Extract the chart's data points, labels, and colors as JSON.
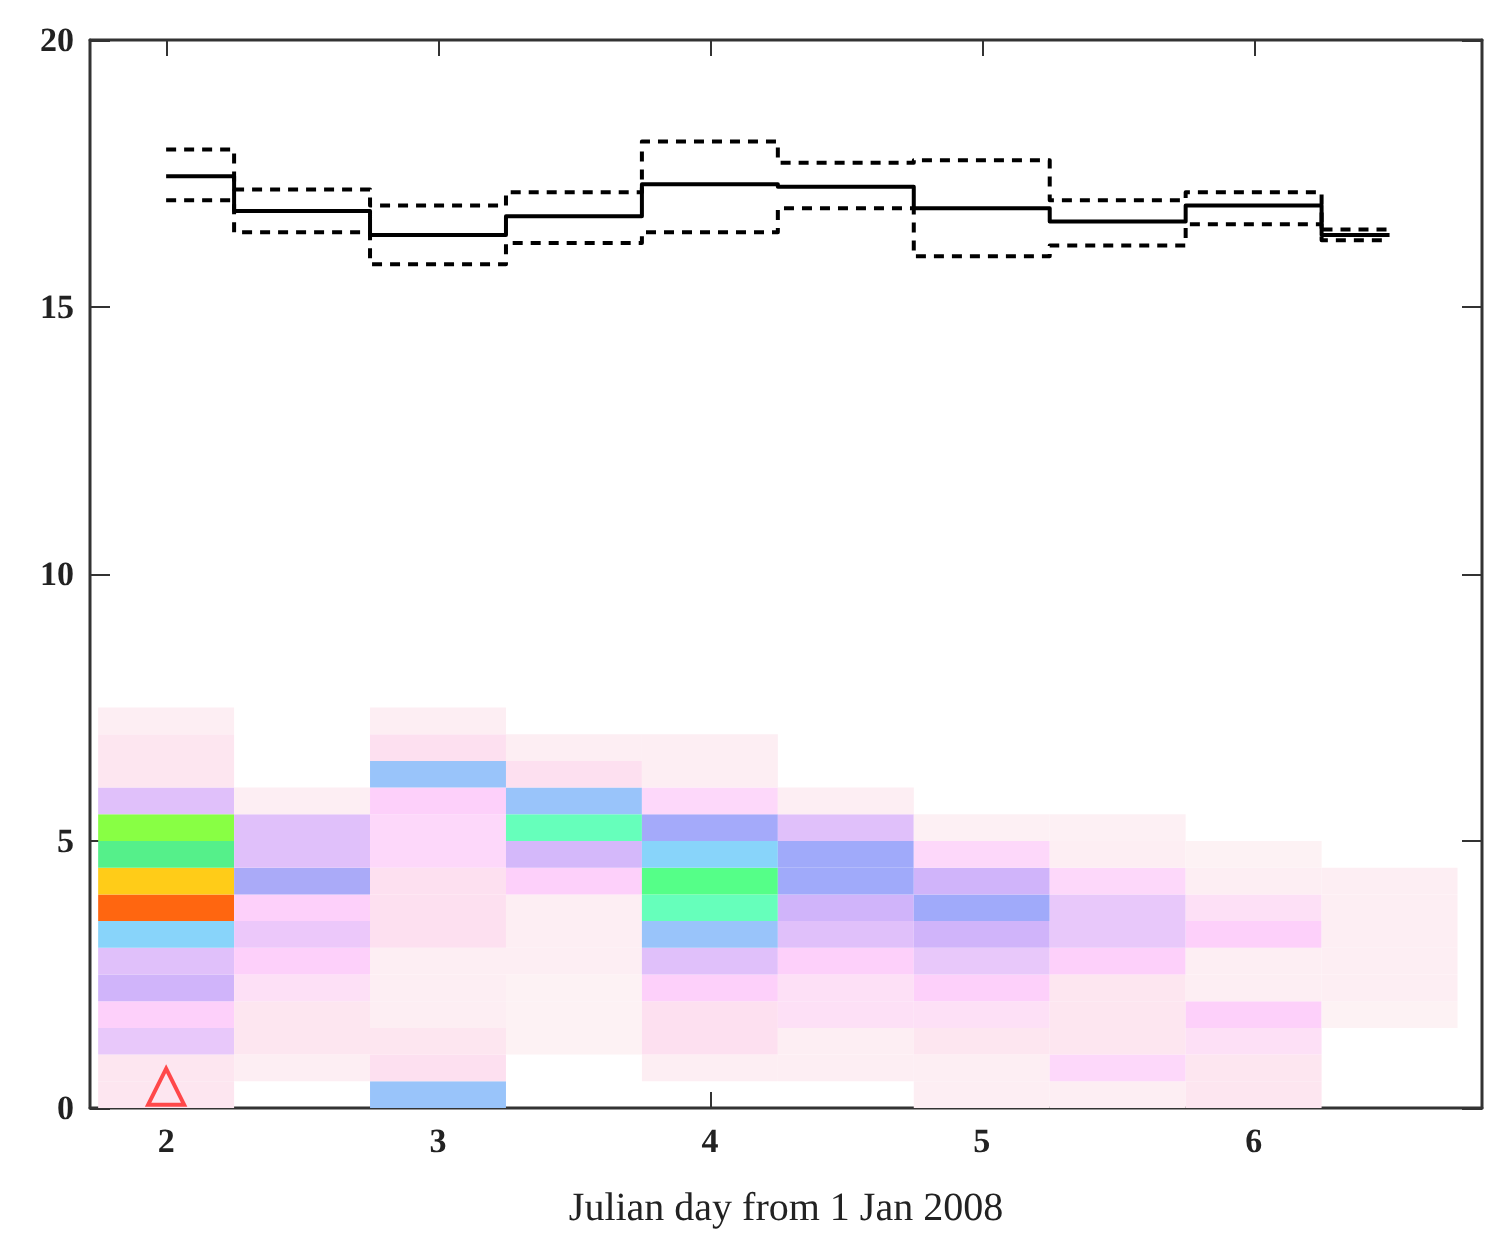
{
  "chart_data": {
    "type": "bar",
    "xlabel": "Julian day from 1 Jan 2008",
    "x": [
      2,
      2.5,
      3,
      3.5,
      4,
      4.5,
      5,
      5.5,
      6,
      6.5
    ],
    "xlim": [
      1.72,
      6.84
    ],
    "xticks": [
      2,
      3,
      4,
      5,
      6
    ],
    "ylim": [
      0,
      20
    ],
    "yticks": [
      0,
      5,
      10,
      15,
      20
    ],
    "series": [
      {
        "base": [
          0,
          null,
          0,
          null,
          null,
          null,
          0,
          0,
          0,
          null
        ],
        "values": [
          0.5,
          null,
          0.5,
          null,
          null,
          null,
          0.5,
          0.5,
          0.5,
          null
        ],
        "colors": [
          "#fde6f0",
          null,
          "#99c4fa",
          null,
          null,
          null,
          "#fdeef3",
          "#fdeef3",
          "#fde6f0",
          null
        ]
      },
      {
        "base": [
          0.5,
          0.5,
          0.5,
          null,
          0.5,
          0.5,
          0.5,
          0.5,
          0.5,
          null
        ],
        "values": [
          0.5,
          0.5,
          0.5,
          null,
          0.5,
          0.5,
          0.5,
          0.5,
          0.5,
          null
        ],
        "colors": [
          "#fde6f0",
          "#fdeef3",
          "#fde0f0",
          null,
          "#fdeef3",
          "#fdeef3",
          "#fdeef3",
          "#fdd8fa",
          "#fde6f0",
          null
        ]
      },
      {
        "base": [
          1,
          1,
          1,
          1,
          1,
          1,
          1,
          1,
          1,
          null
        ],
        "values": [
          0.5,
          0.5,
          0.5,
          0.5,
          0.5,
          0.5,
          0.5,
          0.5,
          0.5,
          null
        ],
        "colors": [
          "#e8c8fa",
          "#fde6f0",
          "#fde6f0",
          "#fdf2f4",
          "#fde0f0",
          "#fdeef3",
          "#fde6f0",
          "#fde6f0",
          "#fde0f6",
          null
        ]
      },
      {
        "base": [
          1.5,
          1.5,
          1.5,
          1.5,
          1.5,
          1.5,
          1.5,
          1.5,
          1.5,
          1.5
        ],
        "values": [
          0.5,
          0.5,
          0.5,
          0.5,
          0.5,
          0.5,
          0.5,
          0.5,
          0.5,
          0.5
        ],
        "colors": [
          "#fdd0fa",
          "#fde6f0",
          "#fdeef3",
          "#fdf2f4",
          "#fde0f0",
          "#fde0f6",
          "#fde0f6",
          "#fde6f0",
          "#fdd0fa",
          "#fdf2f4"
        ]
      },
      {
        "base": [
          2,
          2,
          2,
          2,
          2,
          2,
          2,
          2,
          2,
          2
        ],
        "values": [
          0.5,
          0.5,
          0.5,
          0.5,
          0.5,
          0.5,
          0.5,
          0.5,
          0.5,
          0.5
        ],
        "colors": [
          "#d0b4fa",
          "#fde0f6",
          "#fdeef3",
          "#fdf2f4",
          "#fdd0fa",
          "#fde0f6",
          "#fdd0fa",
          "#fde6f0",
          "#fdeef3",
          "#fdeef3"
        ]
      },
      {
        "base": [
          2.5,
          2.5,
          2.5,
          2.5,
          2.5,
          2.5,
          2.5,
          2.5,
          2.5,
          2.5
        ],
        "values": [
          0.5,
          0.5,
          0.5,
          0.5,
          0.5,
          0.5,
          0.5,
          0.5,
          0.5,
          0.5
        ],
        "colors": [
          "#e0c0fa",
          "#fdd0fa",
          "#fdeef3",
          "#fdeef3",
          "#e0c0fa",
          "#fdd0fa",
          "#e8c8fa",
          "#fdd0fa",
          "#fdeef3",
          "#fdeef3"
        ]
      },
      {
        "base": [
          3,
          3,
          3,
          3,
          3,
          3,
          3,
          3,
          3,
          3
        ],
        "values": [
          0.5,
          0.5,
          0.5,
          0.5,
          0.5,
          0.5,
          0.5,
          0.5,
          0.5,
          0.5
        ],
        "colors": [
          "#88d4fa",
          "#ecc8fa",
          "#fde0f0",
          "#fdeef3",
          "#99c4fa",
          "#e0c0fa",
          "#d0b4fa",
          "#e8c8fa",
          "#fdd0fa",
          "#fdeef3"
        ]
      },
      {
        "base": [
          3.5,
          3.5,
          3.5,
          3.5,
          3.5,
          3.5,
          3.5,
          3.5,
          3.5,
          3.5
        ],
        "values": [
          0.5,
          0.5,
          0.5,
          0.5,
          0.5,
          0.5,
          0.5,
          0.5,
          0.5,
          0.5
        ],
        "colors": [
          "#ff6610",
          "#fdd0fa",
          "#fde0f0",
          "#fdeef3",
          "#66ffbb",
          "#d0b4fa",
          "#a0aafa",
          "#e8c8fa",
          "#fde0f6",
          "#fdeef3"
        ]
      },
      {
        "base": [
          4,
          4,
          4,
          4,
          4,
          4,
          4,
          4,
          4,
          4
        ],
        "values": [
          0.5,
          0.5,
          0.5,
          0.5,
          0.5,
          0.5,
          0.5,
          0.5,
          0.5,
          0.5
        ],
        "colors": [
          "#ffcc18",
          "#aaaaf8",
          "#fde0f0",
          "#fdd0fa",
          "#55ff88",
          "#a0aafa",
          "#d0b4fa",
          "#fdd8fa",
          "#fdeef3",
          "#fdeef3"
        ]
      },
      {
        "base": [
          4.5,
          4.5,
          4.5,
          4.5,
          4.5,
          4.5,
          4.5,
          4.5,
          4.5,
          null
        ],
        "values": [
          0.5,
          0.5,
          0.5,
          0.5,
          0.5,
          0.5,
          0.5,
          0.5,
          0.5,
          null
        ],
        "colors": [
          "#55f08a",
          "#e0c0fa",
          "#fdd8fa",
          "#d4b8fa",
          "#88d4fa",
          "#a0aafa",
          "#fdd8fa",
          "#fdeef3",
          "#fdf2f4",
          null
        ]
      },
      {
        "base": [
          5,
          5,
          5,
          5,
          5,
          5,
          5,
          5,
          null,
          null
        ],
        "values": [
          0.5,
          0.5,
          0.5,
          0.5,
          0.5,
          0.5,
          0.5,
          0.5,
          null,
          null
        ],
        "colors": [
          "#88ff44",
          "#e0c0fa",
          "#fdd8fa",
          "#66ffbb",
          "#a4aafa",
          "#e0c0fa",
          "#fdf0f4",
          "#fdf0f4",
          null,
          null
        ]
      },
      {
        "base": [
          5.5,
          5.5,
          5.5,
          5.5,
          5.5,
          5.5,
          null,
          null,
          null,
          null
        ],
        "values": [
          0.5,
          0.5,
          0.5,
          0.5,
          0.5,
          0.5,
          null,
          null,
          null,
          null
        ],
        "colors": [
          "#e0c0fa",
          "#fdeef3",
          "#fdd0fa",
          "#99c4fa",
          "#fdd8fa",
          "#fdeef3",
          null,
          null,
          null,
          null
        ]
      },
      {
        "base": [
          6,
          null,
          6,
          6,
          6,
          null,
          null,
          null,
          null,
          null
        ],
        "values": [
          0.5,
          null,
          0.5,
          0.5,
          0.5,
          null,
          null,
          null,
          null,
          null
        ],
        "colors": [
          "#fde6f0",
          null,
          "#99c4fa",
          "#fde0f0",
          "#fdeef3",
          null,
          null,
          null,
          null,
          null
        ]
      },
      {
        "base": [
          6.5,
          null,
          6.5,
          6.5,
          6.5,
          null,
          null,
          null,
          null,
          null
        ],
        "values": [
          0.5,
          null,
          0.5,
          0.5,
          0.5,
          null,
          null,
          null,
          null,
          null
        ],
        "colors": [
          "#fde6f0",
          null,
          "#fde0f0",
          "#fdeef3",
          "#fdeef3",
          null,
          null,
          null,
          null,
          null
        ]
      },
      {
        "base": [
          7,
          null,
          7,
          null,
          null,
          null,
          null,
          null,
          null,
          null
        ],
        "values": [
          0.5,
          null,
          0.5,
          null,
          null,
          null,
          null,
          null,
          null,
          null
        ],
        "colors": [
          "#fdeef3",
          null,
          "#fdeef3",
          null,
          null,
          null,
          null,
          null,
          null,
          null
        ]
      },
      {
        "type": "step",
        "color": "#000000",
        "line_style": "solid",
        "values": [
          17.45,
          16.8,
          16.35,
          16.7,
          17.3,
          17.25,
          16.85,
          16.6,
          16.9,
          16.35
        ]
      },
      {
        "type": "step",
        "color": "#000000",
        "line_style": "dashed",
        "values": [
          17.95,
          17.2,
          16.9,
          17.15,
          18.1,
          17.7,
          17.75,
          17.0,
          17.15,
          16.45
        ]
      },
      {
        "type": "step",
        "color": "#000000",
        "line_style": "dashed",
        "values": [
          17.0,
          16.4,
          15.8,
          16.2,
          16.4,
          16.85,
          15.95,
          16.15,
          16.55,
          16.25
        ]
      },
      {
        "type": "scatter",
        "color": "#ff2020",
        "marker": "triangle",
        "x": [
          2
        ],
        "values": [
          0.4
        ]
      }
    ]
  }
}
